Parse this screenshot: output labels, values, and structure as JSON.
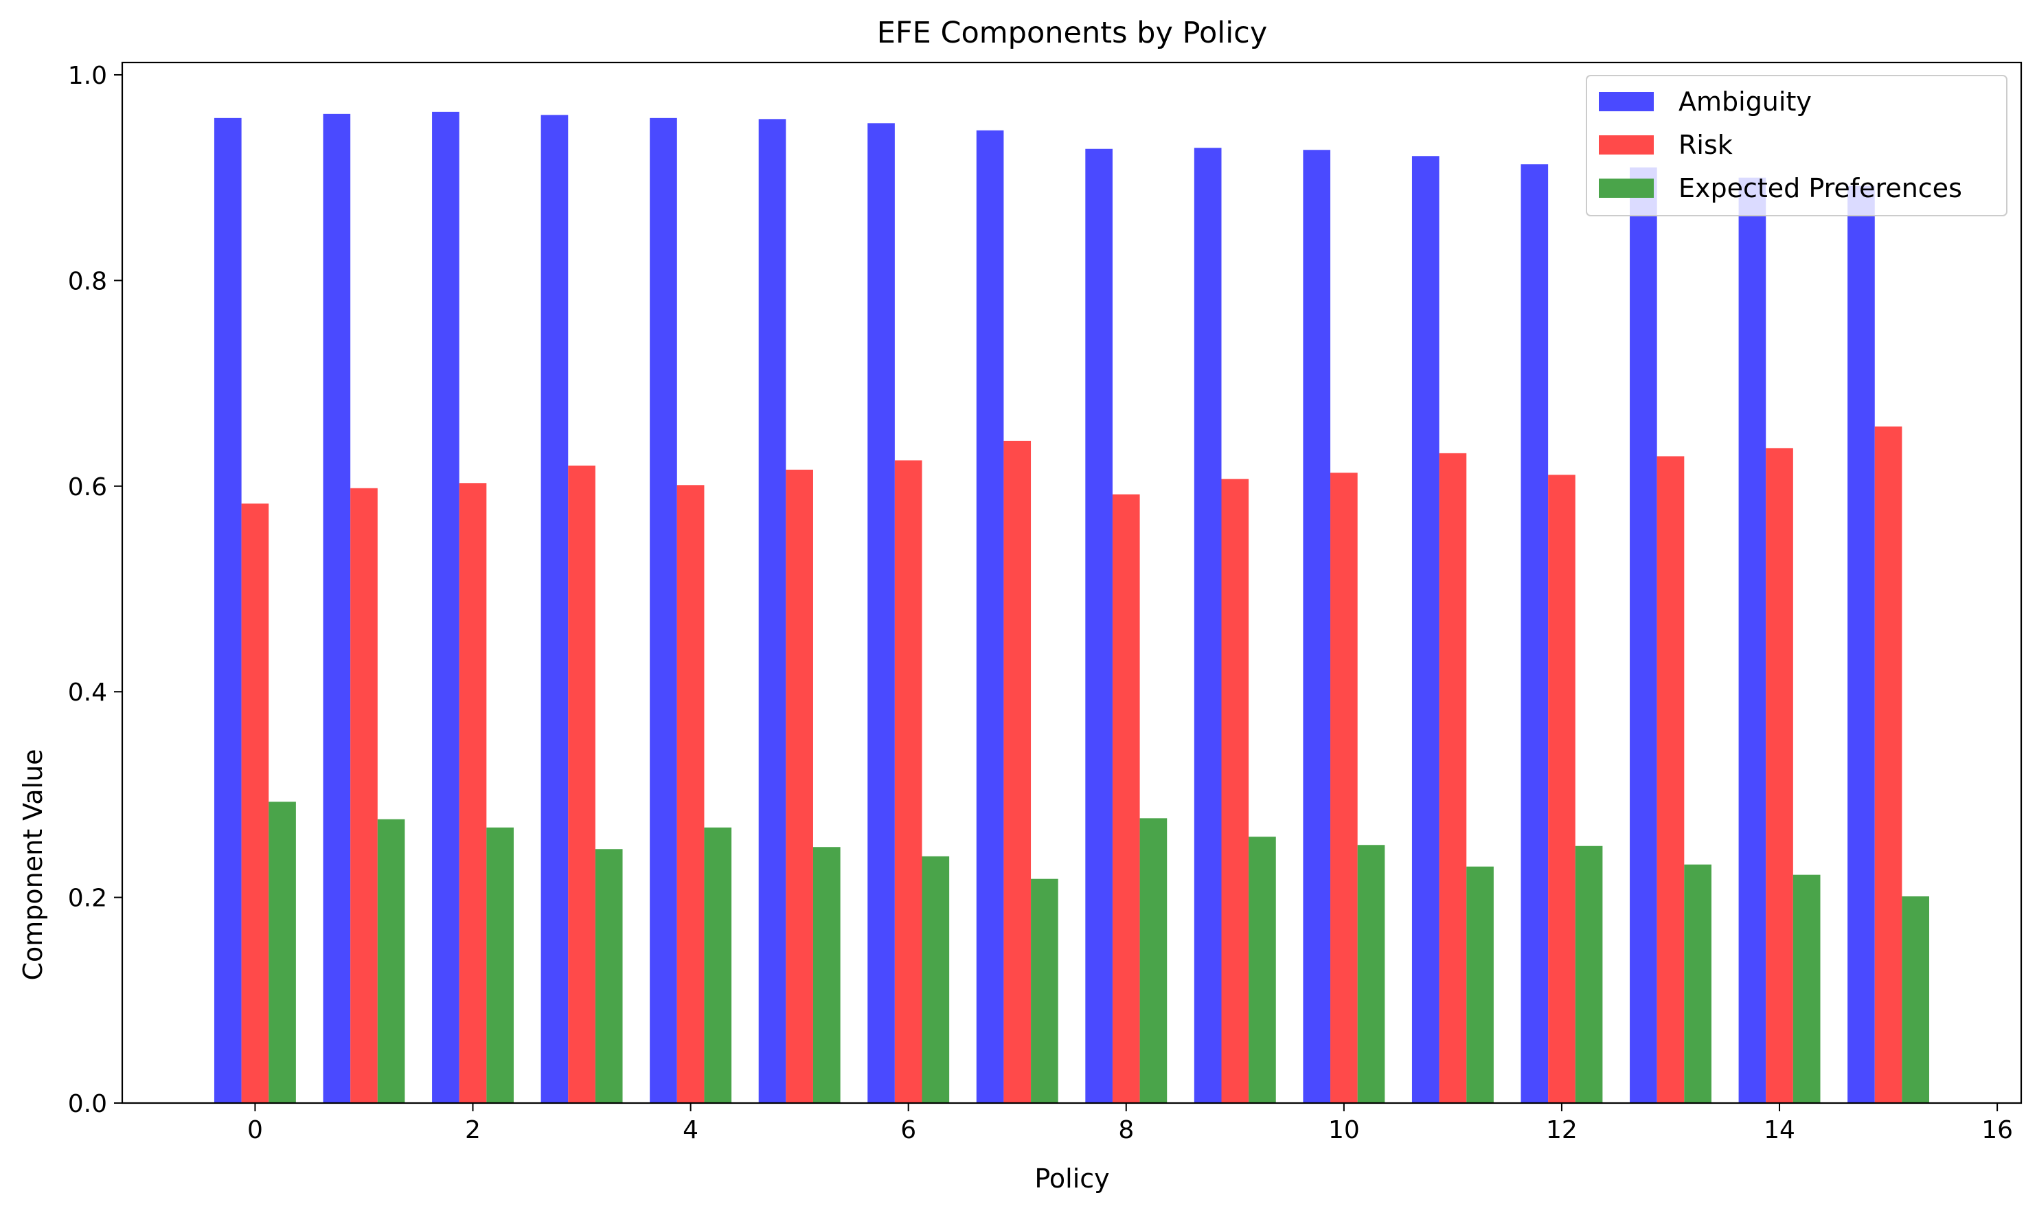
{
  "chart_data": {
    "type": "bar",
    "title": "EFE Components by Policy",
    "xlabel": "Policy",
    "ylabel": "Component Value",
    "xlim": [
      -1.22,
      16.22
    ],
    "ylim": [
      0,
      1.012
    ],
    "xticks": [
      0,
      2,
      4,
      6,
      8,
      10,
      12,
      14,
      16
    ],
    "yticks": [
      "0.0",
      "0.2",
      "0.4",
      "0.6",
      "0.8",
      "1.0"
    ],
    "grid": false,
    "legend_position": "top-right",
    "bar_width": 0.25,
    "categories": [
      0,
      1,
      2,
      3,
      4,
      5,
      6,
      7,
      8,
      9,
      10,
      11,
      12,
      13,
      14,
      15
    ],
    "series": [
      {
        "name": "Ambiguity",
        "color": "#4a4aff",
        "offset": -0.25,
        "values": [
          0.958,
          0.962,
          0.964,
          0.961,
          0.958,
          0.957,
          0.953,
          0.946,
          0.928,
          0.929,
          0.927,
          0.921,
          0.913,
          0.91,
          0.9,
          0.892
        ]
      },
      {
        "name": "Risk",
        "color": "#ff4a4a",
        "offset": 0,
        "values": [
          0.583,
          0.598,
          0.603,
          0.62,
          0.601,
          0.616,
          0.625,
          0.644,
          0.592,
          0.607,
          0.613,
          0.632,
          0.611,
          0.629,
          0.637,
          0.658
        ]
      },
      {
        "name": "Expected Preferences",
        "color": "#4aa44a",
        "offset": 0.25,
        "values": [
          0.293,
          0.276,
          0.268,
          0.247,
          0.268,
          0.249,
          0.24,
          0.218,
          0.277,
          0.259,
          0.251,
          0.23,
          0.25,
          0.232,
          0.222,
          0.201
        ]
      }
    ]
  }
}
